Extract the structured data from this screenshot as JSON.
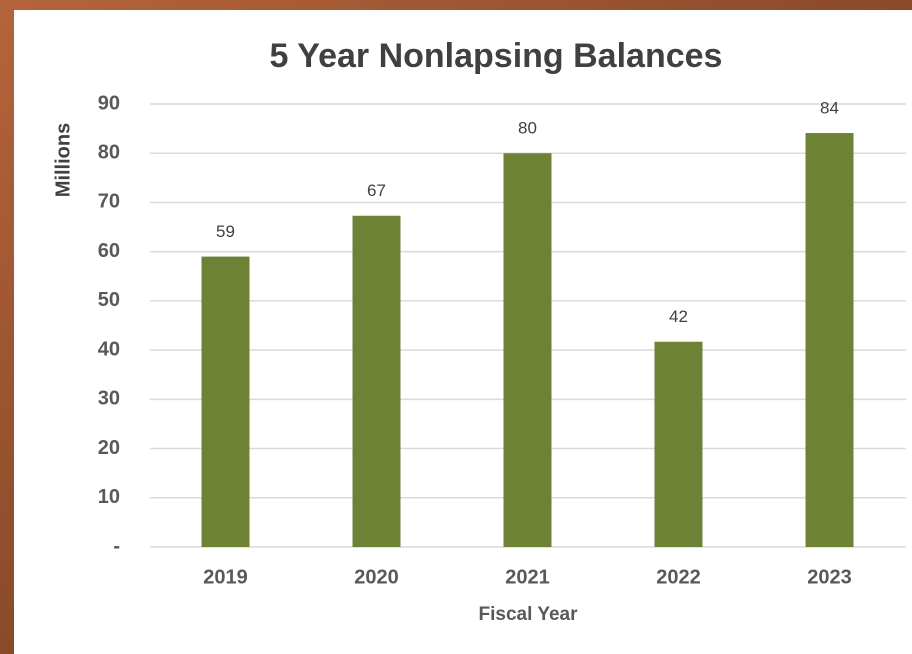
{
  "chart_data": {
    "type": "bar",
    "title": "5 Year Nonlapsing Balances",
    "x_label": "Fiscal Year",
    "y_label": "Millions",
    "categories": [
      "2019",
      "2020",
      "2021",
      "2022",
      "2023"
    ],
    "values": [
      59,
      67.3,
      80,
      41.7,
      84.1
    ],
    "value_labels": [
      "59",
      "67",
      "80",
      "42",
      "84"
    ],
    "color": "#6e8235",
    "ylim": [
      0,
      90
    ],
    "yticks": [
      {
        "value": 0,
        "label": "-"
      },
      10,
      20,
      30,
      40,
      50,
      60,
      70,
      80,
      90
    ],
    "grid": true
  }
}
